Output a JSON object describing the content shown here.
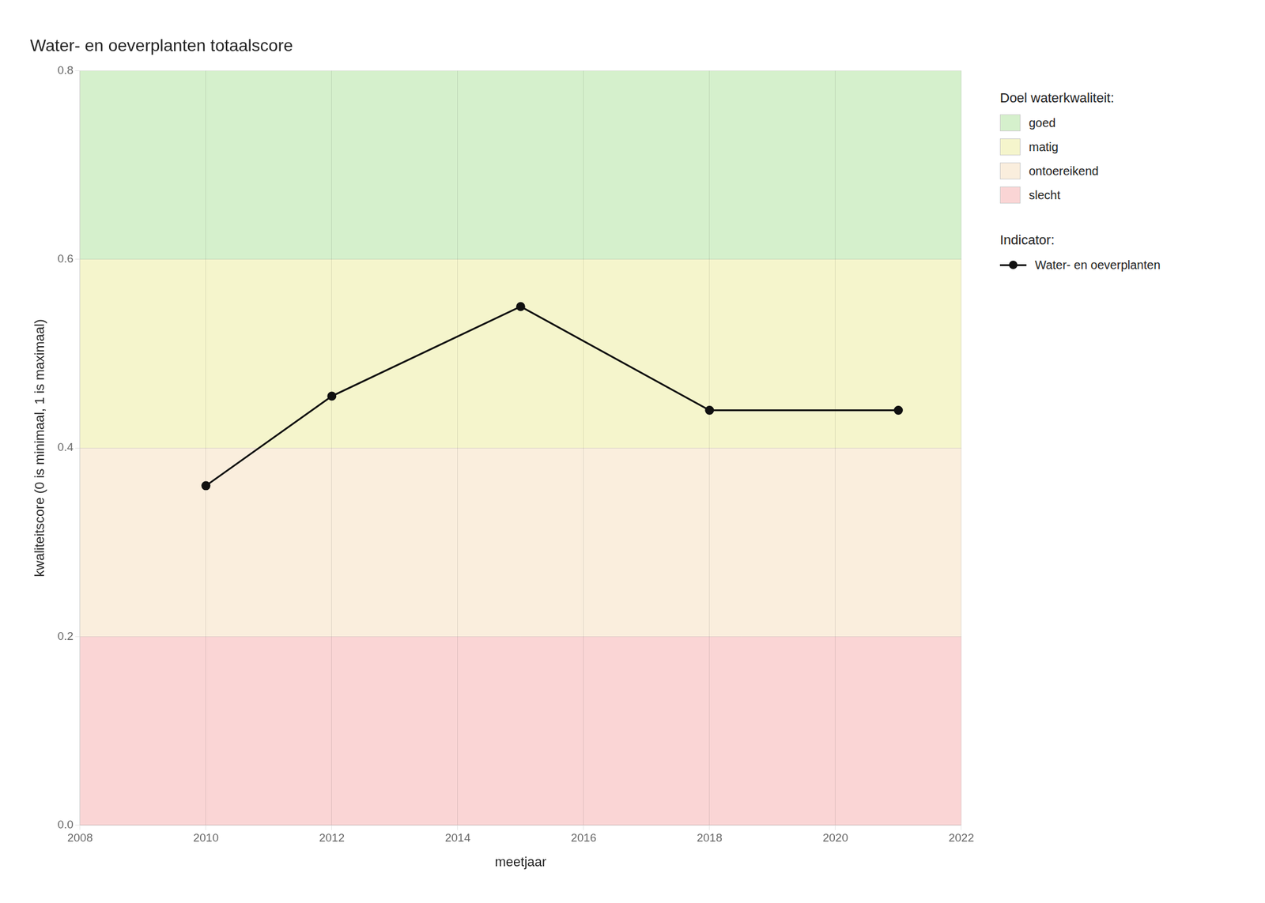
{
  "chart_data": {
    "type": "line",
    "title": "Water- en oeverplanten totaalscore",
    "x_label": "meetjaar",
    "y_label": "kwaliteitscore (0 is minimaal, 1 is maximaal)",
    "x": [
      2010,
      2012,
      2015,
      2018,
      2021
    ],
    "series": [
      {
        "name": "Water- en oeverplanten",
        "color": "#111111",
        "marker": "circle",
        "values": [
          0.36,
          0.455,
          0.55,
          0.44,
          0.44
        ]
      }
    ],
    "series_legend_title": "Indicator:",
    "bands_legend_title": "Doel waterkwaliteit:",
    "bands": [
      {
        "label": "goed",
        "ymin": 0.6,
        "ymax": 0.8,
        "color": "#d5f0cc"
      },
      {
        "label": "matig",
        "ymin": 0.4,
        "ymax": 0.6,
        "color": "#f5f5cc"
      },
      {
        "label": "ontoereikend",
        "ymin": 0.2,
        "ymax": 0.4,
        "color": "#faeedd"
      },
      {
        "label": "slecht",
        "ymin": 0.0,
        "ymax": 0.2,
        "color": "#fad5d5"
      }
    ],
    "xlim": [
      2008,
      2022
    ],
    "xticks": [
      2008,
      2010,
      2012,
      2014,
      2016,
      2018,
      2020,
      2022
    ],
    "ylim": [
      0.0,
      0.8
    ],
    "yticks": [
      {
        "value": 0.0,
        "label": "0.0"
      },
      0.2,
      0.4,
      0.6,
      0.8
    ],
    "grid": true,
    "legend": "right"
  }
}
